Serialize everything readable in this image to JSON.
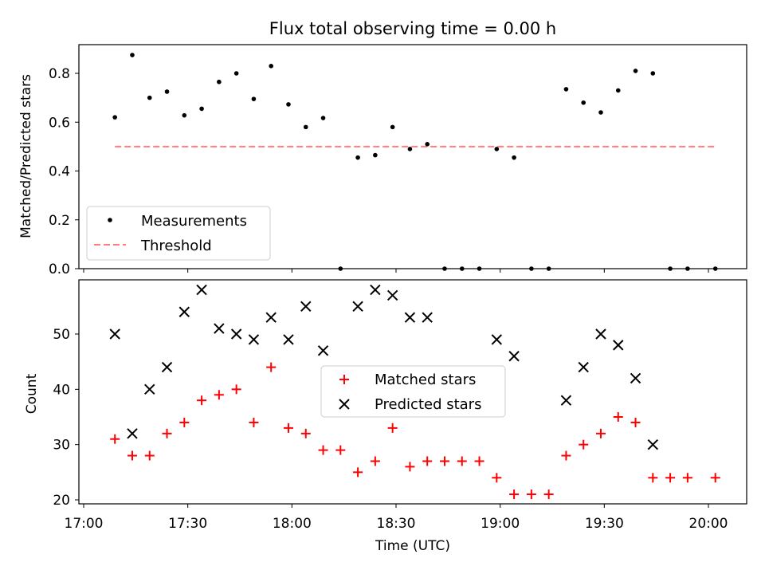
{
  "chart_data": [
    {
      "type": "scatter",
      "title": "Flux total observing time = 0.00 h",
      "xlabel": "",
      "ylabel": "Matched/Predicted stars",
      "ylim": [
        0.0,
        0.92
      ],
      "yticks": [
        "0.0",
        "0.2",
        "0.4",
        "0.6",
        "0.8"
      ],
      "x_ticks_shown": false,
      "legend": {
        "placement": "lower-left",
        "entries": [
          "Measurements",
          "Threshold"
        ]
      },
      "series": [
        {
          "name": "Measurements",
          "marker": "dot",
          "color": "#000000",
          "x": [
            "17:09",
            "17:14",
            "17:19",
            "17:24",
            "17:29",
            "17:34",
            "17:39",
            "17:44",
            "17:49",
            "17:54",
            "17:59",
            "18:04",
            "18:09",
            "18:14",
            "18:19",
            "18:24",
            "18:29",
            "18:34",
            "18:39",
            "18:44",
            "18:49",
            "18:54",
            "18:59",
            "19:04",
            "19:09",
            "19:14",
            "19:19",
            "19:24",
            "19:29",
            "19:34",
            "19:39",
            "19:44",
            "19:49",
            "19:54",
            "20:02"
          ],
          "y": [
            0.62,
            0.875,
            0.7,
            0.725,
            0.628,
            0.655,
            0.765,
            0.8,
            0.695,
            0.83,
            0.673,
            0.58,
            0.617,
            0.0,
            0.455,
            0.465,
            0.58,
            0.49,
            0.51,
            0.0,
            0.0,
            0.0,
            0.49,
            0.455,
            0.0,
            0.0,
            0.735,
            0.68,
            0.64,
            0.73,
            0.81,
            0.8,
            0.0,
            0.0,
            0.0
          ]
        },
        {
          "name": "Threshold",
          "style": "dashed",
          "color": "#ff7f7f",
          "x": [
            "17:09",
            "20:02"
          ],
          "y": [
            0.5,
            0.5
          ]
        }
      ]
    },
    {
      "type": "scatter",
      "title": "",
      "xlabel": "Time (UTC)",
      "ylabel": "Count",
      "xlim": [
        "17:00",
        "20:11"
      ],
      "ylim": [
        19.5,
        60
      ],
      "xticks": [
        "17:00",
        "17:30",
        "18:00",
        "18:30",
        "19:00",
        "19:30",
        "20:00"
      ],
      "yticks": [
        "20",
        "30",
        "40",
        "50"
      ],
      "legend": {
        "placement": "center",
        "entries": [
          "Matched stars",
          "Predicted stars"
        ]
      },
      "series": [
        {
          "name": "Matched stars",
          "marker": "plus",
          "color": "#ff0000",
          "x": [
            "17:09",
            "17:14",
            "17:19",
            "17:24",
            "17:29",
            "17:34",
            "17:39",
            "17:44",
            "17:49",
            "17:54",
            "17:59",
            "18:04",
            "18:09",
            "18:14",
            "18:19",
            "18:24",
            "18:29",
            "18:34",
            "18:39",
            "18:44",
            "18:49",
            "18:54",
            "18:59",
            "19:04",
            "19:09",
            "19:14",
            "19:19",
            "19:24",
            "19:29",
            "19:34",
            "19:39",
            "19:44",
            "19:49",
            "19:54",
            "20:02"
          ],
          "y": [
            31,
            28,
            28,
            32,
            34,
            38,
            39,
            40,
            34,
            44,
            33,
            32,
            29,
            29,
            25,
            27,
            33,
            26,
            27,
            27,
            27,
            27,
            24,
            21,
            21,
            21,
            28,
            30,
            32,
            35,
            34,
            24,
            24,
            24,
            24
          ]
        },
        {
          "name": "Predicted stars",
          "marker": "x",
          "color": "#000000",
          "x": [
            "17:09",
            "17:14",
            "17:19",
            "17:24",
            "17:29",
            "17:34",
            "17:39",
            "17:44",
            "17:49",
            "17:54",
            "17:59",
            "18:04",
            "18:09",
            "18:19",
            "18:24",
            "18:29",
            "18:34",
            "18:39",
            "18:59",
            "19:04",
            "19:19",
            "19:24",
            "19:29",
            "19:34",
            "19:39",
            "19:44"
          ],
          "y": [
            50,
            32,
            40,
            44,
            54,
            58,
            51,
            50,
            49,
            53,
            49,
            55,
            47,
            55,
            58,
            57,
            53,
            53,
            49,
            46,
            38,
            44,
            50,
            48,
            42,
            30
          ]
        }
      ]
    }
  ]
}
